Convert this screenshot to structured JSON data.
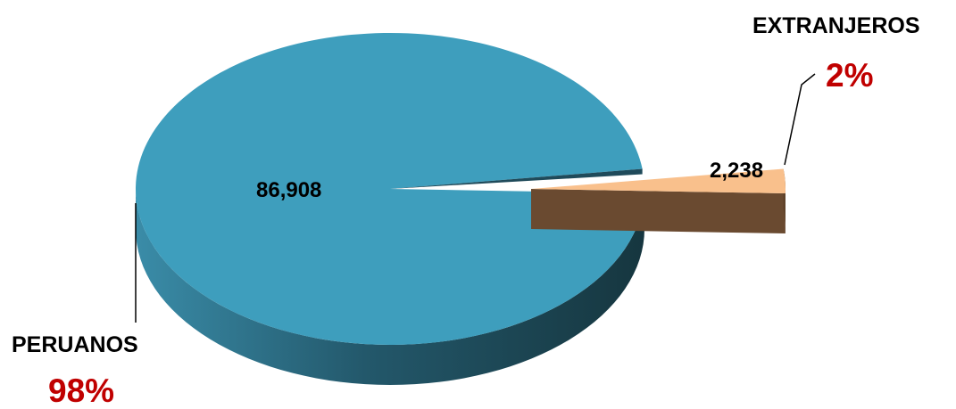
{
  "chart_data": {
    "type": "pie",
    "title": "",
    "slices": [
      {
        "label": "PERUANOS",
        "value": 86908,
        "value_label": "86,908",
        "percent_label": "98%",
        "color": "#3e9ebd",
        "side_color": "#1f4a5a"
      },
      {
        "label": "EXTRANJEROS",
        "value": 2238,
        "value_label": "2,238",
        "percent_label": "2%",
        "color": "#f9c08c",
        "side_color": "#6a4a30",
        "exploded": true
      }
    ],
    "percent_color": "#c00000",
    "style": "3d",
    "legend": "none"
  }
}
